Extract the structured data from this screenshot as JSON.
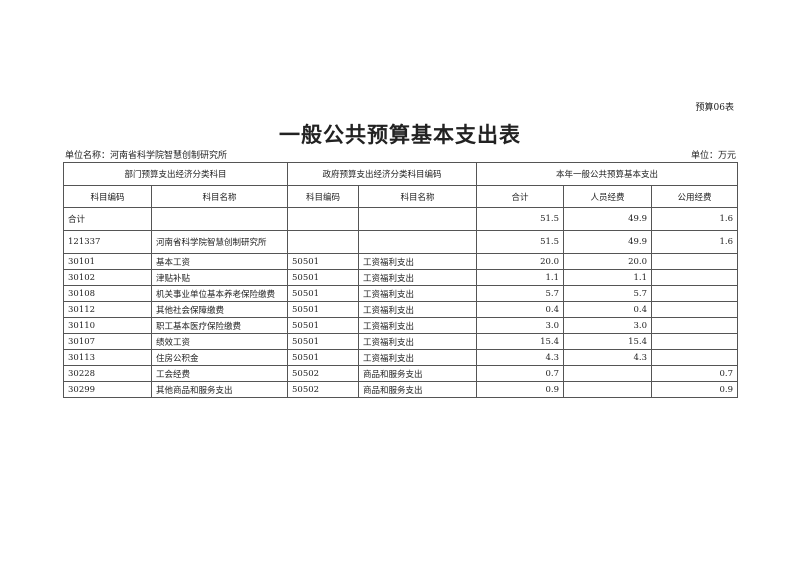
{
  "form_no": "预算06表",
  "title": "一般公共预算基本支出表",
  "unit_name": "单位名称：河南省科学院智慧创制研究所",
  "unit": "单位：万元",
  "group_headers": [
    "部门预算支出经济分类科目",
    "政府预算支出经济分类科目编码",
    "本年一般公共预算基本支出"
  ],
  "columns": [
    "科目编码",
    "科目名称",
    "科目编码",
    "科目名称",
    "合计",
    "人员经费",
    "公用经费"
  ],
  "rows": [
    [
      "合计",
      "",
      "",
      "",
      "51.5",
      "49.9",
      "1.6"
    ],
    [
      "121337",
      "河南省科学院智慧创制研究所",
      "",
      "",
      "51.5",
      "49.9",
      "1.6"
    ],
    [
      "30101",
      "基本工资",
      "50501",
      "工资福利支出",
      "20.0",
      "20.0",
      ""
    ],
    [
      "30102",
      "津贴补贴",
      "50501",
      "工资福利支出",
      "1.1",
      "1.1",
      ""
    ],
    [
      "30108",
      "机关事业单位基本养老保险缴费",
      "50501",
      "工资福利支出",
      "5.7",
      "5.7",
      ""
    ],
    [
      "30112",
      "其他社会保障缴费",
      "50501",
      "工资福利支出",
      "0.4",
      "0.4",
      ""
    ],
    [
      "30110",
      "职工基本医疗保险缴费",
      "50501",
      "工资福利支出",
      "3.0",
      "3.0",
      ""
    ],
    [
      "30107",
      "绩效工资",
      "50501",
      "工资福利支出",
      "15.4",
      "15.4",
      ""
    ],
    [
      "30113",
      "住房公积金",
      "50501",
      "工资福利支出",
      "4.3",
      "4.3",
      ""
    ],
    [
      "30228",
      "工会经费",
      "50502",
      "商品和服务支出",
      "0.7",
      "",
      "0.7"
    ],
    [
      "30299",
      "其他商品和服务支出",
      "50502",
      "商品和服务支出",
      "0.9",
      "",
      "0.9"
    ]
  ]
}
